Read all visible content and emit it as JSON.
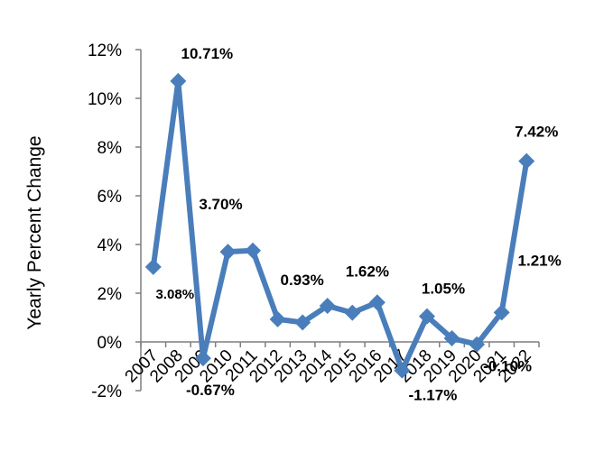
{
  "chart_data": {
    "type": "line",
    "title": "",
    "xlabel": "",
    "ylabel": "Yearly Percent Change",
    "categories": [
      "2007",
      "2008",
      "2009",
      "2010",
      "2011",
      "2012",
      "2013",
      "2014",
      "2015",
      "2016",
      "2017",
      "2018",
      "2019",
      "2020",
      "2021",
      "2022"
    ],
    "series": [
      {
        "values": [
          3.08,
          10.71,
          -0.67,
          3.7,
          3.75,
          0.93,
          0.8,
          1.48,
          1.2,
          1.62,
          -1.17,
          1.05,
          0.15,
          -0.1,
          1.21,
          7.42
        ]
      }
    ],
    "y_ticks": [
      "-2%",
      "0%",
      "2%",
      "4%",
      "6%",
      "8%",
      "10%",
      "12%"
    ],
    "ylim": [
      -2,
      12
    ],
    "grid": false,
    "legend": "none",
    "marker": "diamond",
    "color": "#4a7ebb",
    "data_labels": [
      {
        "index": 0,
        "text": "3.08%"
      },
      {
        "index": 1,
        "text": "10.71%"
      },
      {
        "index": 2,
        "text": "-0.67%"
      },
      {
        "index": 3,
        "text": "3.70%"
      },
      {
        "index": 5,
        "text": "0.93%"
      },
      {
        "index": 9,
        "text": "1.62%"
      },
      {
        "index": 10,
        "text": "-1.17%"
      },
      {
        "index": 11,
        "text": "1.05%"
      },
      {
        "index": 13,
        "text": "-0.10%"
      },
      {
        "index": 14,
        "text": "1.21%"
      },
      {
        "index": 15,
        "text": "7.42%"
      }
    ]
  }
}
